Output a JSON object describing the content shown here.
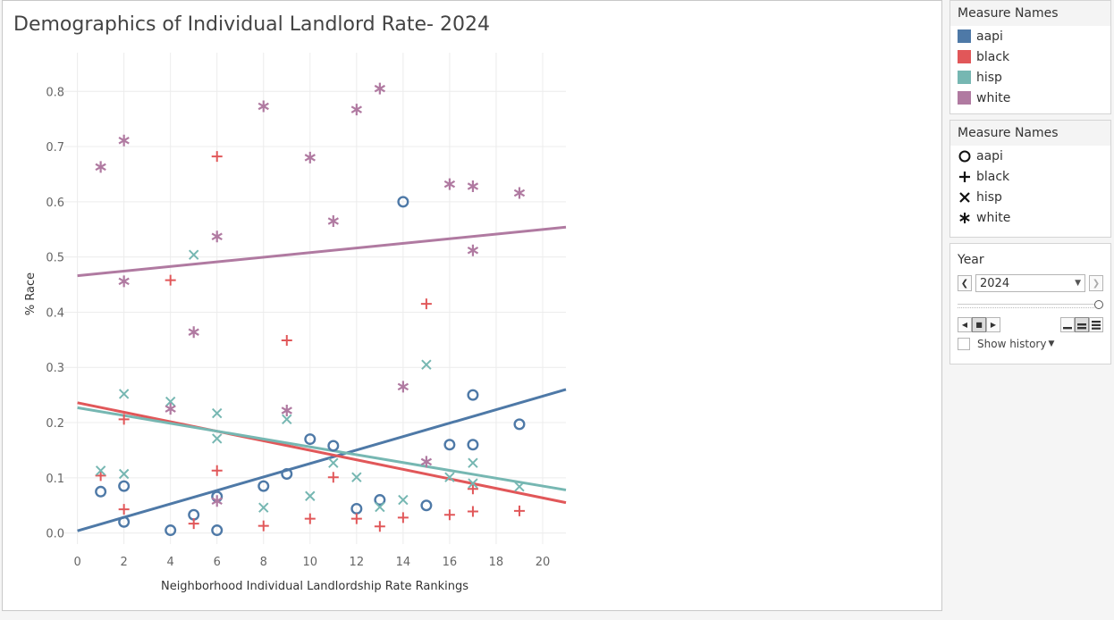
{
  "chart_data": {
    "type": "scatter",
    "title": "Demographics of Individual Landlord Rate- 2024",
    "xlabel": "Neighborhood Individual Landlordship Rate Rankings",
    "ylabel": "% Race",
    "xlim": [
      -0.6,
      21
    ],
    "ylim": [
      -0.02,
      0.87
    ],
    "xticks": [
      0,
      2,
      4,
      6,
      8,
      10,
      12,
      14,
      16,
      18,
      20
    ],
    "yticks": [
      0.0,
      0.1,
      0.2,
      0.3,
      0.4,
      0.5,
      0.6,
      0.7,
      0.8
    ],
    "ytick_labels": [
      "0.0",
      "0.1",
      "0.2",
      "0.3",
      "0.4",
      "0.5",
      "0.6",
      "0.7",
      "0.8"
    ],
    "grid": true,
    "legend": "right",
    "series": [
      {
        "name": "aapi",
        "color": "#4e79a7",
        "shape": "circle",
        "points": [
          [
            1,
            0.075
          ],
          [
            2,
            0.085
          ],
          [
            2,
            0.02
          ],
          [
            4,
            0.005
          ],
          [
            5,
            0.033
          ],
          [
            6,
            0.066
          ],
          [
            6,
            0.005
          ],
          [
            8,
            0.085
          ],
          [
            9,
            0.107
          ],
          [
            10,
            0.17
          ],
          [
            11,
            0.158
          ],
          [
            12,
            0.044
          ],
          [
            13,
            0.06
          ],
          [
            14,
            0.6
          ],
          [
            15,
            0.05
          ],
          [
            16,
            0.16
          ],
          [
            17,
            0.25
          ],
          [
            17,
            0.16
          ],
          [
            19,
            0.197
          ]
        ],
        "trend": [
          0.004,
          0.26
        ]
      },
      {
        "name": "black",
        "color": "#e15759",
        "shape": "plus",
        "points": [
          [
            1,
            0.104
          ],
          [
            2,
            0.206
          ],
          [
            2,
            0.043
          ],
          [
            4,
            0.458
          ],
          [
            5,
            0.017
          ],
          [
            6,
            0.682
          ],
          [
            6,
            0.113
          ],
          [
            8,
            0.013
          ],
          [
            9,
            0.349
          ],
          [
            10,
            0.026
          ],
          [
            11,
            0.101
          ],
          [
            12,
            0.026
          ],
          [
            13,
            0.012
          ],
          [
            14,
            0.028
          ],
          [
            15,
            0.415
          ],
          [
            16,
            0.033
          ],
          [
            17,
            0.08
          ],
          [
            17,
            0.039
          ],
          [
            19,
            0.04
          ]
        ],
        "trend": [
          0.236,
          0.055
        ]
      },
      {
        "name": "hisp",
        "color": "#76b7b2",
        "shape": "x",
        "points": [
          [
            1,
            0.113
          ],
          [
            2,
            0.252
          ],
          [
            2,
            0.107
          ],
          [
            4,
            0.238
          ],
          [
            5,
            0.504
          ],
          [
            6,
            0.217
          ],
          [
            6,
            0.171
          ],
          [
            8,
            0.046
          ],
          [
            9,
            0.206
          ],
          [
            10,
            0.067
          ],
          [
            11,
            0.127
          ],
          [
            12,
            0.101
          ],
          [
            13,
            0.047
          ],
          [
            14,
            0.06
          ],
          [
            15,
            0.305
          ],
          [
            16,
            0.101
          ],
          [
            17,
            0.127
          ],
          [
            17,
            0.09
          ],
          [
            19,
            0.084
          ]
        ],
        "trend": [
          0.227,
          0.078
        ]
      },
      {
        "name": "white",
        "color": "#b07aa1",
        "shape": "asterisk",
        "points": [
          [
            1,
            0.663
          ],
          [
            2,
            0.711
          ],
          [
            2,
            0.456
          ],
          [
            4,
            0.225
          ],
          [
            5,
            0.364
          ],
          [
            6,
            0.537
          ],
          [
            6,
            0.058
          ],
          [
            8,
            0.773
          ],
          [
            9,
            0.222
          ],
          [
            10,
            0.68
          ],
          [
            11,
            0.565
          ],
          [
            12,
            0.767
          ],
          [
            13,
            0.805
          ],
          [
            14,
            0.265
          ],
          [
            15,
            0.129
          ],
          [
            16,
            0.632
          ],
          [
            17,
            0.628
          ],
          [
            17,
            0.512
          ],
          [
            19,
            0.616
          ]
        ],
        "trend": [
          0.466,
          0.554
        ]
      }
    ]
  },
  "color_legend": {
    "title": "Measure Names",
    "items": [
      {
        "label": "aapi",
        "color": "#4e79a7"
      },
      {
        "label": "black",
        "color": "#e15759"
      },
      {
        "label": "hisp",
        "color": "#76b7b2"
      },
      {
        "label": "white",
        "color": "#b07aa1"
      }
    ]
  },
  "shape_legend": {
    "title": "Measure Names",
    "items": [
      {
        "label": "aapi",
        "shape": "circle-icon"
      },
      {
        "label": "black",
        "shape": "plus-icon"
      },
      {
        "label": "hisp",
        "shape": "x-icon"
      },
      {
        "label": "white",
        "shape": "asterisk-icon"
      }
    ]
  },
  "year_filter": {
    "title": "Year",
    "value": "2024",
    "show_history_label": "Show history"
  }
}
